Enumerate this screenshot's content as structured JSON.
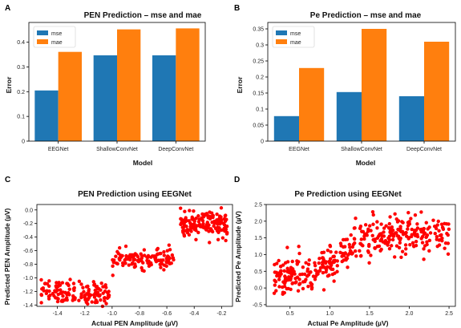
{
  "colors": {
    "mse": "#1f77b4",
    "mae": "#ff7f0e",
    "scatter": "#ff0000"
  },
  "panels": [
    "A",
    "B",
    "C",
    "D"
  ],
  "chart_data": [
    {
      "id": "A",
      "type": "bar",
      "title": "PEN Prediction – mse and mae",
      "xlabel": "Model",
      "ylabel": "Error",
      "categories": [
        "EEGNet",
        "ShallowConvNet",
        "DeepConvNet"
      ],
      "series": [
        {
          "name": "mse",
          "values": [
            0.205,
            0.347,
            0.347
          ]
        },
        {
          "name": "mae",
          "values": [
            0.361,
            0.452,
            0.456
          ]
        }
      ],
      "ylim": [
        0,
        0.48
      ],
      "yticks": [
        0,
        0.1,
        0.2,
        0.3,
        0.4
      ],
      "ytick_labels": [
        "0",
        "0.1",
        "0.2",
        "0.3",
        "0.4"
      ],
      "legend": "top-left"
    },
    {
      "id": "B",
      "type": "bar",
      "title": "Pe Prediction – mse and mae",
      "xlabel": "Model",
      "ylabel": "Error",
      "categories": [
        "EEGNet",
        "ShallowConvNet",
        "DeepConvNet"
      ],
      "series": [
        {
          "name": "mse",
          "values": [
            0.078,
            0.153,
            0.14
          ]
        },
        {
          "name": "mae",
          "values": [
            0.228,
            0.35,
            0.31
          ]
        }
      ],
      "ylim": [
        0,
        0.37
      ],
      "yticks": [
        0,
        0.05,
        0.1,
        0.15,
        0.2,
        0.25,
        0.3,
        0.35
      ],
      "ytick_labels": [
        "0",
        "0.05",
        "0.1",
        "0.15",
        "0.2",
        "0.25",
        "0.3",
        "0.35"
      ],
      "legend": "top-left"
    },
    {
      "id": "C",
      "type": "scatter",
      "title": "PEN Prediction using EEGNet",
      "xlabel": "Actual PEN Amplitude (µV)",
      "ylabel": "Predicted PEN Amplitude (µV)",
      "xlim": [
        -1.55,
        -0.12
      ],
      "ylim": [
        -1.42,
        0.08
      ],
      "xticks": [
        -1.4,
        -1.2,
        -1.0,
        -0.8,
        -0.6,
        -0.4,
        -0.2
      ],
      "xtick_labels": [
        "-1.4",
        "-1.2",
        "-1.0",
        "-0.8",
        "-0.6",
        "-0.4",
        "-0.2"
      ],
      "yticks": [
        -1.4,
        -1.2,
        -1.0,
        -0.8,
        -0.6,
        -0.4,
        -0.2,
        0.0
      ],
      "ytick_labels": [
        "-1.4",
        "-1.2",
        "-1.0",
        "-0.8",
        "-0.6",
        "-0.4",
        "-0.2",
        "0.0"
      ],
      "clusters": [
        {
          "x": [
            -1.52,
            -1.02
          ],
          "y_center": -1.22,
          "y_spread": 0.09,
          "n": 140
        },
        {
          "x": [
            -1.0,
            -0.55
          ],
          "y_center": -0.72,
          "y_spread": 0.07,
          "n": 120
        },
        {
          "x": [
            -0.5,
            -0.15
          ],
          "y_center": -0.22,
          "y_spread": 0.09,
          "n": 160
        }
      ]
    },
    {
      "id": "D",
      "type": "scatter",
      "title": "Pe Prediction using EEGNet",
      "xlabel": "Actual Pe Amplitude (µV)",
      "ylabel": "Predicted Pe Amplitude (µV)",
      "xlim": [
        0.2,
        2.58
      ],
      "ylim": [
        -0.55,
        2.5
      ],
      "xticks": [
        0.5,
        1.0,
        1.5,
        2.0,
        2.5
      ],
      "xtick_labels": [
        "0.5",
        "1.0",
        "1.5",
        "2.0",
        "2.5"
      ],
      "yticks": [
        -0.5,
        0.0,
        0.5,
        1.0,
        1.5,
        2.0,
        2.5
      ],
      "ytick_labels": [
        "-0.5",
        "0.0",
        "0.5",
        "1.0",
        "1.5",
        "2.0",
        "2.5"
      ],
      "trend": {
        "low": 0.35,
        "high": 1.6,
        "x_mid": 1.15,
        "width": 0.22,
        "noise": 0.28
      },
      "n": 420
    }
  ]
}
